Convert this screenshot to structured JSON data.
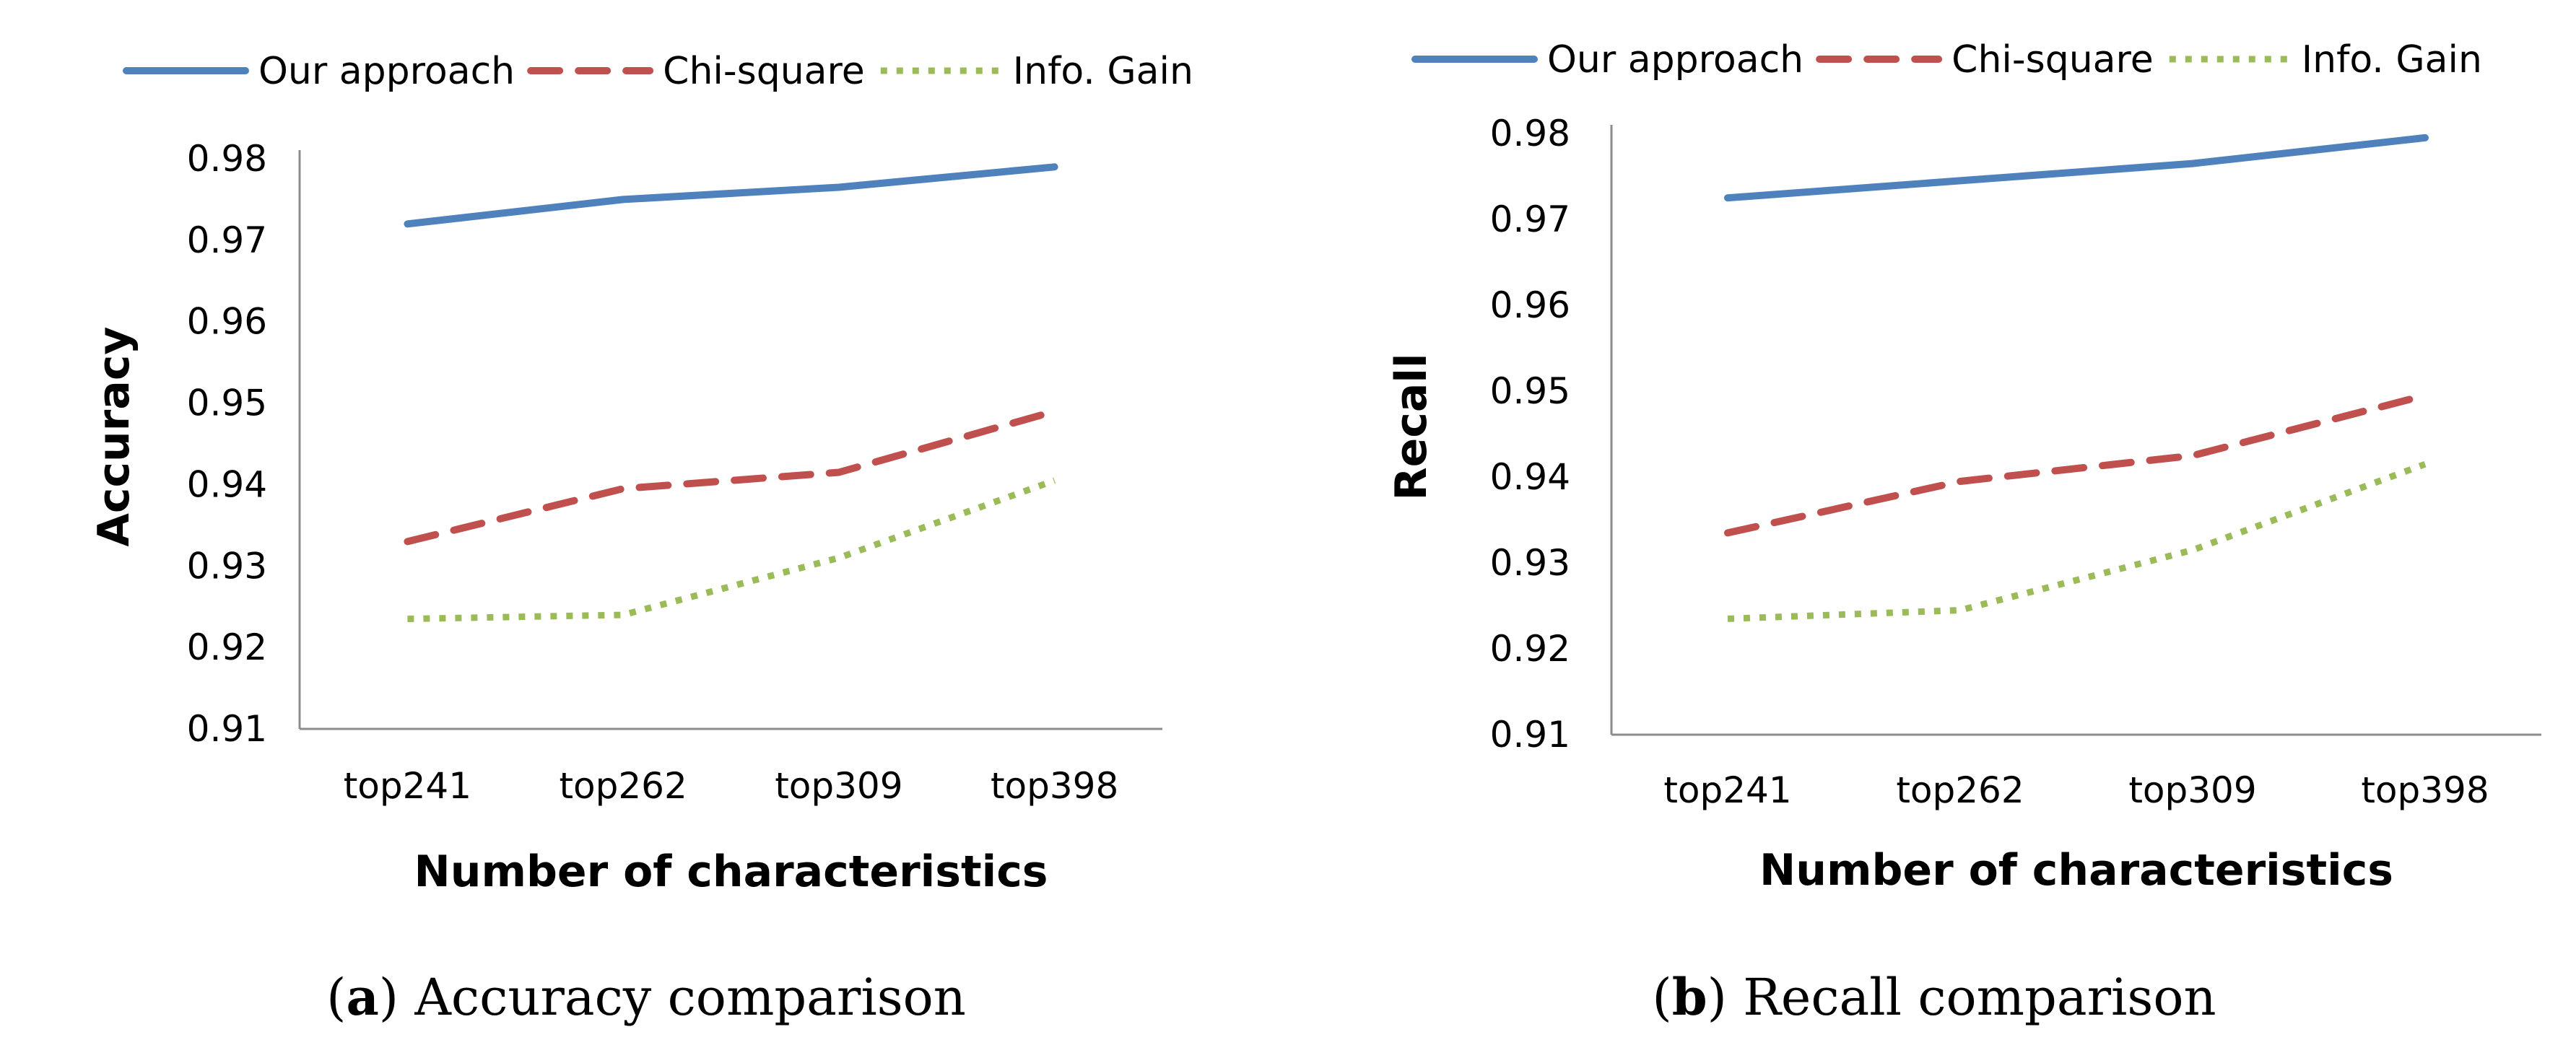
{
  "chart_data": [
    {
      "type": "line",
      "title": "",
      "xlabel": "Number of characteristics",
      "ylabel": "Accuracy",
      "categories": [
        "top241",
        "top262",
        "top309",
        "top398"
      ],
      "ylim": [
        0.91,
        0.98
      ],
      "yticks": [
        "0.98",
        "0.97",
        "0.96",
        "0.95",
        "0.94",
        "0.93",
        "0.92",
        "0.91"
      ],
      "legend_position": "top",
      "series": [
        {
          "name": "Our approach",
          "values": [
            0.972,
            0.975,
            0.9765,
            0.979
          ],
          "color": "#4f81bd",
          "style": "solid"
        },
        {
          "name": "Chi-square",
          "values": [
            0.933,
            0.9395,
            0.9415,
            0.949
          ],
          "color": "#c0504d",
          "style": "dashed"
        },
        {
          "name": "Info. Gain",
          "values": [
            0.9235,
            0.924,
            0.931,
            0.9405
          ],
          "color": "#9bbb59",
          "style": "dotted"
        }
      ]
    },
    {
      "type": "line",
      "title": "",
      "xlabel": "Number of characteristics",
      "ylabel": "Recall",
      "categories": [
        "top241",
        "top262",
        "top309",
        "top398"
      ],
      "ylim": [
        0.91,
        0.98
      ],
      "yticks": [
        "0.98",
        "0.97",
        "0.96",
        "0.95",
        "0.94",
        "0.93",
        "0.92",
        "0.91"
      ],
      "legend_position": "top",
      "series": [
        {
          "name": "Our approach",
          "values": [
            0.9725,
            0.9745,
            0.9765,
            0.9795
          ],
          "color": "#4f81bd",
          "style": "solid"
        },
        {
          "name": "Chi-square",
          "values": [
            0.9335,
            0.9395,
            0.9425,
            0.9495
          ],
          "color": "#c0504d",
          "style": "dashed"
        },
        {
          "name": "Info. Gain",
          "values": [
            0.9235,
            0.9245,
            0.9315,
            0.9415
          ],
          "color": "#9bbb59",
          "style": "dotted"
        }
      ]
    }
  ],
  "captions": [
    {
      "letter": "a",
      "text": " Accuracy comparison"
    },
    {
      "letter": "b",
      "text": " Recall comparison"
    }
  ]
}
